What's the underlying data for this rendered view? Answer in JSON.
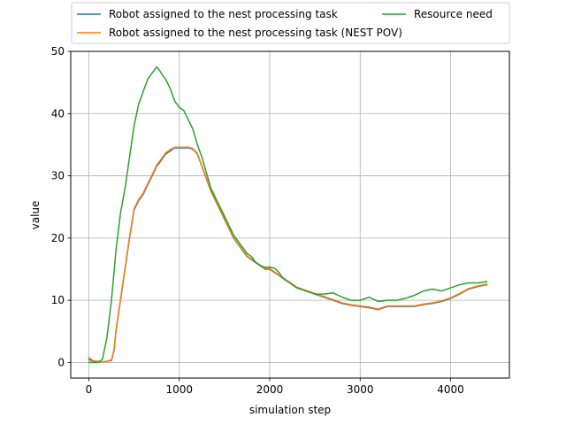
{
  "chart_data": {
    "type": "line",
    "title": "",
    "xlabel": "simulation step",
    "ylabel": "value",
    "xlim": [
      -200,
      4650
    ],
    "ylim": [
      -2.5,
      50
    ],
    "x_ticks": [
      0,
      1000,
      2000,
      3000,
      4000
    ],
    "y_ticks": [
      0,
      10,
      20,
      30,
      40,
      50
    ],
    "grid": true,
    "legend_position": "top-center",
    "series": [
      {
        "name": "Robot assigned to the nest processing task",
        "color": "#1f77b4",
        "x": [
          0,
          50,
          100,
          150,
          200,
          250,
          280,
          300,
          350,
          400,
          450,
          500,
          550,
          600,
          650,
          700,
          750,
          800,
          850,
          900,
          950,
          1000,
          1050,
          1100,
          1150,
          1200,
          1250,
          1300,
          1350,
          1400,
          1450,
          1500,
          1550,
          1600,
          1650,
          1700,
          1750,
          1800,
          1850,
          1900,
          1950,
          2000,
          2050,
          2100,
          2150,
          2200,
          2300,
          2400,
          2500,
          2600,
          2700,
          2800,
          2900,
          3000,
          3100,
          3200,
          3300,
          3400,
          3500,
          3600,
          3700,
          3800,
          3900,
          4000,
          4100,
          4200,
          4300,
          4400
        ],
        "values": [
          0.5,
          0.2,
          0.1,
          0.1,
          0.2,
          0.3,
          2.0,
          5.0,
          10.0,
          15.0,
          20.0,
          24.5,
          26.0,
          27.0,
          28.5,
          30.0,
          31.5,
          32.5,
          33.5,
          34.0,
          34.5,
          34.5,
          34.5,
          34.5,
          34.3,
          33.5,
          31.5,
          29.5,
          27.5,
          26.0,
          24.5,
          23.0,
          21.5,
          20.0,
          19.0,
          18.0,
          17.0,
          16.5,
          16.0,
          15.5,
          15.0,
          15.0,
          14.5,
          14.0,
          13.5,
          13.0,
          12.0,
          11.5,
          11.0,
          10.5,
          10.0,
          9.5,
          9.2,
          9.0,
          8.8,
          8.5,
          9.0,
          9.0,
          9.0,
          9.0,
          9.3,
          9.5,
          9.8,
          10.3,
          11.0,
          11.8,
          12.2,
          12.5
        ]
      },
      {
        "name": "Robot assigned to the nest processing task (NEST POV)",
        "color": "#ff7f0e",
        "x": [
          0,
          50,
          100,
          150,
          200,
          250,
          280,
          300,
          350,
          400,
          450,
          500,
          550,
          600,
          650,
          700,
          750,
          800,
          850,
          900,
          950,
          1000,
          1050,
          1100,
          1150,
          1200,
          1250,
          1300,
          1350,
          1400,
          1450,
          1500,
          1550,
          1600,
          1650,
          1700,
          1750,
          1800,
          1850,
          1900,
          1950,
          2000,
          2050,
          2100,
          2150,
          2200,
          2300,
          2400,
          2500,
          2600,
          2700,
          2800,
          2900,
          3000,
          3100,
          3200,
          3300,
          3400,
          3500,
          3600,
          3700,
          3800,
          3900,
          4000,
          4100,
          4200,
          4300,
          4400
        ],
        "values": [
          0.8,
          0.3,
          0.2,
          0.1,
          0.2,
          0.4,
          2.2,
          5.2,
          10.2,
          15.2,
          20.2,
          24.7,
          26.2,
          27.2,
          28.7,
          30.2,
          31.7,
          32.7,
          33.7,
          34.2,
          34.6,
          34.6,
          34.6,
          34.6,
          34.4,
          33.6,
          31.6,
          29.6,
          27.6,
          26.1,
          24.6,
          23.1,
          21.6,
          20.1,
          19.1,
          18.1,
          17.1,
          16.6,
          16.1,
          15.6,
          15.1,
          15.1,
          14.6,
          14.1,
          13.6,
          13.1,
          12.1,
          11.6,
          11.1,
          10.6,
          10.1,
          9.6,
          9.3,
          9.1,
          8.9,
          8.6,
          9.1,
          9.1,
          9.1,
          9.1,
          9.4,
          9.6,
          9.9,
          10.4,
          11.1,
          11.9,
          12.3,
          12.6
        ]
      },
      {
        "name": "Resource need",
        "color": "#2ca02c",
        "x": [
          0,
          50,
          100,
          150,
          200,
          250,
          300,
          350,
          400,
          450,
          500,
          550,
          600,
          650,
          700,
          750,
          780,
          800,
          850,
          900,
          950,
          1000,
          1050,
          1100,
          1150,
          1200,
          1250,
          1300,
          1350,
          1400,
          1450,
          1500,
          1550,
          1600,
          1650,
          1700,
          1750,
          1800,
          1850,
          1900,
          1950,
          2000,
          2050,
          2100,
          2150,
          2200,
          2300,
          2400,
          2500,
          2600,
          2700,
          2800,
          2900,
          3000,
          3100,
          3200,
          3300,
          3400,
          3500,
          3600,
          3700,
          3800,
          3900,
          4000,
          4100,
          4200,
          4300,
          4400
        ],
        "values": [
          0.0,
          0.0,
          0.0,
          0.5,
          4.0,
          10.0,
          18.0,
          24.0,
          28.0,
          33.0,
          38.0,
          41.5,
          43.5,
          45.5,
          46.5,
          47.5,
          47.0,
          46.5,
          45.5,
          44.0,
          42.0,
          41.0,
          40.5,
          39.0,
          37.5,
          35.0,
          33.0,
          30.5,
          28.0,
          26.5,
          25.0,
          23.5,
          22.0,
          20.5,
          19.5,
          18.5,
          17.5,
          17.0,
          16.0,
          15.5,
          15.3,
          15.3,
          15.2,
          14.5,
          13.5,
          13.0,
          12.0,
          11.5,
          11.0,
          11.0,
          11.2,
          10.5,
          10.0,
          10.0,
          10.5,
          9.8,
          10.0,
          10.0,
          10.3,
          10.8,
          11.5,
          11.8,
          11.5,
          12.0,
          12.5,
          12.8,
          12.8,
          13.0
        ]
      }
    ],
    "legend_layout": [
      [
        "Robot assigned to the nest processing task",
        "Resource need"
      ],
      [
        "Robot assigned to the nest processing task (NEST POV)"
      ]
    ]
  }
}
